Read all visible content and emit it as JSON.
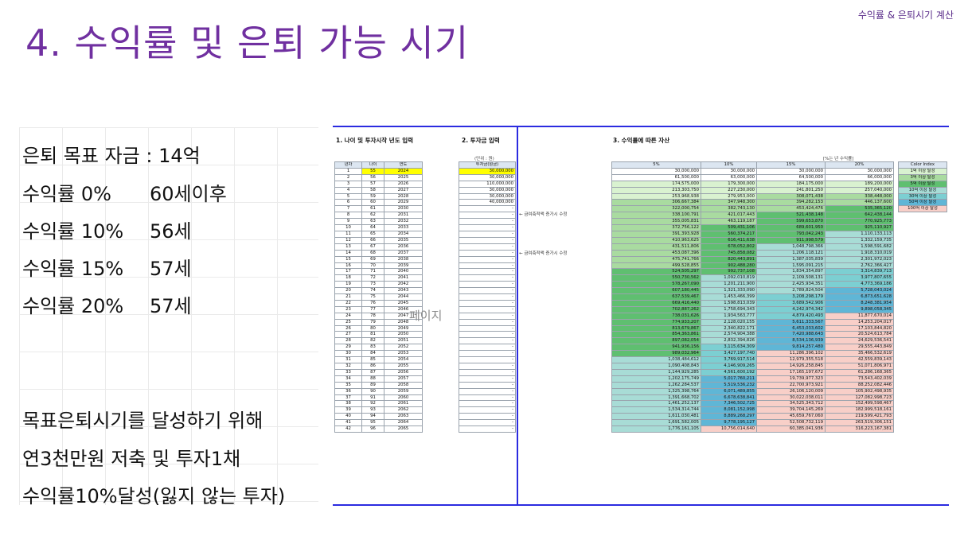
{
  "header": {
    "top_label": "수익률 & 은퇴시기 계산",
    "title": "4. 수익률 및 은퇴 가능 시기"
  },
  "left": {
    "goal": "은퇴 목표 자금 : 14억",
    "rows": [
      {
        "label": "수익률 0%",
        "age": "60세이후"
      },
      {
        "label": "수익률 10%",
        "age": "56세"
      },
      {
        "label": "수익률 15%",
        "age": "57세"
      },
      {
        "label": "수익률 20%",
        "age": "57세"
      }
    ],
    "conclusion": [
      "목표은퇴시기를 달성하기 위해",
      "연3천만원 저축 및 투자1채",
      "수익률10%달성(잃지 않는 투자)"
    ]
  },
  "sheet": {
    "sec1": "1. 나이 및 투자시작 년도 입력",
    "sec2": "2. 투자금 입력",
    "sec3": "3. 수익률에 따른 자산",
    "unit_note": "(단위 : 원)",
    "rate_note": "[%는 년 수익률]",
    "watermark": "페이지",
    "age_headers": [
      "년차",
      "나이",
      "연도"
    ],
    "invest_header": "투자금(원금)",
    "rate_headers": [
      "5%",
      "10%",
      "15%",
      "20%"
    ],
    "notes": [
      "← 금여축적액 증가시 수정",
      "← 금여축적액 증가시 수정"
    ],
    "rows": [
      [
        "1",
        "55",
        "2024",
        "30,000,000",
        "30,000,000",
        "30,000,000",
        "30,000,000",
        "30,000,000"
      ],
      [
        "2",
        "56",
        "2025",
        "30,000,000",
        "61,500,000",
        "63,000,000",
        "64,500,000",
        "66,000,000"
      ],
      [
        "3",
        "57",
        "2026",
        "110,000,000",
        "174,575,000",
        "179,300,000",
        "184,175,000",
        "189,200,000"
      ],
      [
        "4",
        "58",
        "2027",
        "30,000,000",
        "213,303,750",
        "227,230,000",
        "241,801,250",
        "257,040,000"
      ],
      [
        "5",
        "59",
        "2028",
        "30,000,000",
        "253,968,938",
        "279,953,000",
        "308,071,438",
        "338,448,000"
      ],
      [
        "6",
        "60",
        "2029",
        "40,000,000",
        "306,667,384",
        "347,948,300",
        "394,282,153",
        "446,137,600"
      ],
      [
        "7",
        "61",
        "2030",
        "-",
        "322,000,754",
        "382,743,130",
        "453,424,476",
        "535,365,120"
      ],
      [
        "8",
        "62",
        "2031",
        "-",
        "338,100,791",
        "421,017,443",
        "521,438,148",
        "642,438,144"
      ],
      [
        "9",
        "63",
        "2032",
        "-",
        "355,005,831",
        "463,119,187",
        "599,653,870",
        "770,925,773"
      ],
      [
        "10",
        "64",
        "2033",
        "-",
        "372,756,122",
        "509,431,106",
        "689,601,950",
        "925,110,927"
      ],
      [
        "11",
        "65",
        "2034",
        "-",
        "391,393,928",
        "560,374,217",
        "793,042,243",
        "1,110,133,113"
      ],
      [
        "12",
        "66",
        "2035",
        "-",
        "410,963,625",
        "616,411,638",
        "911,998,579",
        "1,332,159,735"
      ],
      [
        "13",
        "67",
        "2036",
        "-",
        "431,511,806",
        "678,052,802",
        "1,048,798,366",
        "1,598,591,682"
      ],
      [
        "14",
        "68",
        "2037",
        "-",
        "453,087,396",
        "745,858,082",
        "1,206,118,121",
        "1,918,310,019"
      ],
      [
        "15",
        "69",
        "2038",
        "-",
        "475,741,766",
        "820,443,891",
        "1,387,035,839",
        "2,301,972,023"
      ],
      [
        "16",
        "70",
        "2039",
        "-",
        "499,528,855",
        "902,488,280",
        "1,595,091,215",
        "2,762,366,427"
      ],
      [
        "17",
        "71",
        "2040",
        "-",
        "524,505,297",
        "992,737,108",
        "1,834,354,897",
        "3,314,839,713"
      ],
      [
        "18",
        "72",
        "2041",
        "-",
        "550,730,562",
        "1,092,010,819",
        "2,109,508,131",
        "3,977,807,655"
      ],
      [
        "19",
        "73",
        "2042",
        "-",
        "578,267,090",
        "1,201,211,900",
        "2,425,934,351",
        "4,773,369,186"
      ],
      [
        "20",
        "74",
        "2043",
        "-",
        "607,180,445",
        "1,321,333,090",
        "2,789,824,504",
        "5,728,043,024"
      ],
      [
        "21",
        "75",
        "2044",
        "-",
        "637,539,467",
        "1,453,466,399",
        "3,208,298,179",
        "6,873,651,628"
      ],
      [
        "22",
        "76",
        "2045",
        "-",
        "669,416,440",
        "1,598,813,039",
        "3,689,542,906",
        "8,248,381,954"
      ],
      [
        "23",
        "77",
        "2046",
        "-",
        "702,887,262",
        "1,758,694,343",
        "4,242,974,342",
        "9,898,058,345"
      ],
      [
        "24",
        "78",
        "2047",
        "-",
        "738,031,626",
        "1,934,563,777",
        "4,879,420,493",
        "11,877,670,014"
      ],
      [
        "25",
        "79",
        "2048",
        "-",
        "774,933,207",
        "2,128,020,155",
        "5,611,333,567",
        "14,253,204,017"
      ],
      [
        "26",
        "80",
        "2049",
        "-",
        "813,679,867",
        "2,340,822,171",
        "6,453,033,602",
        "17,103,844,820"
      ],
      [
        "27",
        "81",
        "2050",
        "-",
        "854,363,861",
        "2,574,904,388",
        "7,420,988,643",
        "20,524,613,784"
      ],
      [
        "28",
        "82",
        "2051",
        "-",
        "897,082,054",
        "2,832,394,826",
        "8,534,136,939",
        "24,629,536,541"
      ],
      [
        "29",
        "83",
        "2052",
        "-",
        "941,936,156",
        "3,115,634,309",
        "9,814,257,480",
        "29,555,443,849"
      ],
      [
        "30",
        "84",
        "2053",
        "-",
        "989,032,964",
        "3,427,197,740",
        "11,286,396,102",
        "35,466,532,619"
      ],
      [
        "31",
        "85",
        "2054",
        "-",
        "1,038,484,612",
        "3,769,917,514",
        "12,979,355,518",
        "42,559,839,143"
      ],
      [
        "32",
        "86",
        "2055",
        "-",
        "1,090,408,843",
        "4,146,909,265",
        "14,926,258,845",
        "51,071,806,971"
      ],
      [
        "33",
        "87",
        "2056",
        "-",
        "1,144,929,285",
        "4,561,600,192",
        "17,165,197,672",
        "61,286,168,365"
      ],
      [
        "34",
        "88",
        "2057",
        "-",
        "1,202,175,749",
        "5,017,760,211",
        "19,739,977,323",
        "73,543,402,039"
      ],
      [
        "35",
        "89",
        "2058",
        "-",
        "1,262,284,537",
        "5,519,536,232",
        "22,700,973,921",
        "88,252,082,446"
      ],
      [
        "36",
        "90",
        "2059",
        "-",
        "1,325,398,764",
        "6,071,489,855",
        "26,106,120,009",
        "105,902,498,935"
      ],
      [
        "37",
        "91",
        "2060",
        "-",
        "1,391,668,702",
        "6,678,638,841",
        "30,022,038,011",
        "127,082,998,723"
      ],
      [
        "38",
        "92",
        "2061",
        "-",
        "1,461,252,137",
        "7,346,502,725",
        "34,525,343,712",
        "152,499,598,467"
      ],
      [
        "39",
        "93",
        "2062",
        "-",
        "1,534,314,744",
        "8,081,152,998",
        "39,704,145,269",
        "182,999,518,161"
      ],
      [
        "40",
        "94",
        "2063",
        "-",
        "1,611,030,481",
        "8,889,268,297",
        "45,659,767,060",
        "219,599,421,793"
      ],
      [
        "41",
        "95",
        "2064",
        "-",
        "1,691,582,005",
        "9,778,195,127",
        "52,508,732,119",
        "263,519,306,151"
      ],
      [
        "42",
        "96",
        "2065",
        "-",
        "1,776,161,105",
        "10,756,014,640",
        "60,385,041,936",
        "316,223,167,381"
      ]
    ],
    "legend": {
      "header": "Color Index",
      "items": [
        {
          "label": "1억 이상 달성",
          "color": "#d9f2d0"
        },
        {
          "label": "3억 이상 달성",
          "color": "#a9dba0"
        },
        {
          "label": "5억 이상 달성",
          "color": "#5fbf70"
        },
        {
          "label": "10억 이상 달성",
          "color": "#a8dcd6"
        },
        {
          "label": "30억 이상 달성",
          "color": "#7ccfd2"
        },
        {
          "label": "50억 이상 달성",
          "color": "#5fb6d6"
        },
        {
          "label": "100억 이상 달성",
          "color": "#f8cfc8"
        }
      ]
    }
  }
}
